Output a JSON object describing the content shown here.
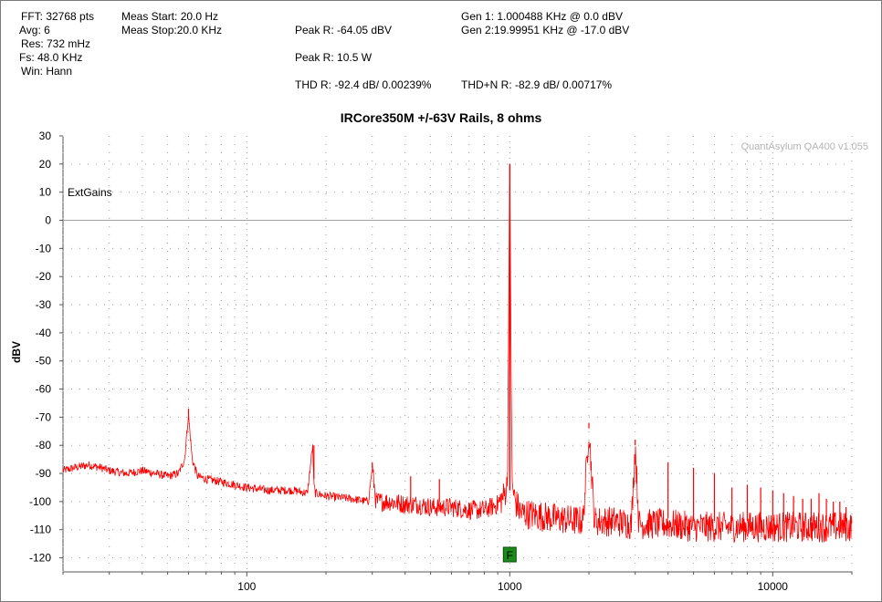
{
  "header": {
    "fft": "FFT: 32768 pts",
    "avg": "Avg: 6",
    "res": "Res: 732 mHz",
    "fs": "Fs: 48.0 KHz",
    "win": "Win: Hann",
    "meas_start": "Meas Start: 20.0 Hz",
    "meas_stop": "Meas Stop:20.0 KHz",
    "peak_r_dbv": "Peak R: -64.05 dBV",
    "peak_r_w": "Peak R: 10.5 W",
    "thd_r": "THD R: -92.4 dB/ 0.00239%",
    "gen1": "Gen 1: 1.000488 KHz @ 0.0  dBV",
    "gen2": "Gen 2:19.99951 KHz @ -17.0  dBV",
    "thdn_r": "THD+N R: -82.9 dB/ 0.00717%"
  },
  "watermark": "QuantAsylum QA400 v1.055",
  "annotation": "ExtGains",
  "marker": "F",
  "colors": {
    "trace": "#ff0000",
    "marker_bg": "#1a8a1a",
    "grid": "#9a9a9a"
  },
  "chart_data": {
    "type": "line",
    "title": "IRCore350M +/-63V Rails, 8 ohms",
    "xlabel": "",
    "ylabel": "dBV",
    "xscale": "log",
    "xlim": [
      20,
      20000
    ],
    "ylim": [
      -125,
      30
    ],
    "yticks": [
      30,
      20,
      10,
      0,
      -10,
      -20,
      -30,
      -40,
      -50,
      -60,
      -70,
      -80,
      -90,
      -100,
      -110,
      -120
    ],
    "xtick_labels": [
      100,
      1000,
      10000
    ],
    "series": [
      {
        "x": [
          20,
          22,
          25,
          28,
          30,
          35,
          40,
          45,
          50,
          55,
          58,
          60,
          62,
          65,
          70,
          80,
          90,
          100,
          120,
          150,
          170,
          178,
          180,
          182,
          200,
          250,
          290,
          300,
          310,
          350,
          400,
          450,
          500,
          600,
          700,
          800,
          900,
          950,
          980,
          1000,
          1020,
          1050,
          1100,
          1500,
          1900,
          2000,
          2100,
          2500,
          2900,
          3000,
          3100,
          4000,
          5000,
          6000,
          7000,
          8000,
          9000,
          10000,
          12000,
          15000,
          18000,
          20000
        ],
        "y": [
          -89,
          -88,
          -87,
          -88,
          -89,
          -90,
          -89,
          -90,
          -91,
          -90,
          -85,
          -69,
          -85,
          -91,
          -92,
          -93,
          -94,
          -95,
          -96,
          -96,
          -97,
          -80,
          -94,
          -97,
          -98,
          -99,
          -100,
          -88,
          -100,
          -100,
          -101,
          -101,
          -102,
          -102,
          -103,
          -103,
          -101,
          -98,
          -94,
          20,
          -94,
          -100,
          -104,
          -106,
          -107,
          -74,
          -107,
          -107,
          -108,
          -80,
          -108,
          -108,
          -109,
          -109,
          -109,
          -109,
          -109,
          -109,
          -109,
          -109,
          -109,
          -109
        ]
      }
    ],
    "spikes": [
      {
        "x": 60,
        "y": -69
      },
      {
        "x": 180,
        "y": -80
      },
      {
        "x": 300,
        "y": -88
      },
      {
        "x": 420,
        "y": -91
      },
      {
        "x": 540,
        "y": -92
      },
      {
        "x": 2000,
        "y": -74
      },
      {
        "x": 3000,
        "y": -80
      },
      {
        "x": 4000,
        "y": -86
      },
      {
        "x": 5000,
        "y": -88
      },
      {
        "x": 6000,
        "y": -90
      },
      {
        "x": 7000,
        "y": -95
      },
      {
        "x": 8000,
        "y": -94
      },
      {
        "x": 9000,
        "y": -95
      },
      {
        "x": 10000,
        "y": -96
      },
      {
        "x": 11000,
        "y": -97
      },
      {
        "x": 12000,
        "y": -98
      },
      {
        "x": 13000,
        "y": -99
      },
      {
        "x": 14000,
        "y": -99
      },
      {
        "x": 15000,
        "y": -97
      },
      {
        "x": 16000,
        "y": -99
      },
      {
        "x": 17000,
        "y": -100
      },
      {
        "x": 18000,
        "y": -100
      },
      {
        "x": 19000,
        "y": -102
      }
    ]
  }
}
